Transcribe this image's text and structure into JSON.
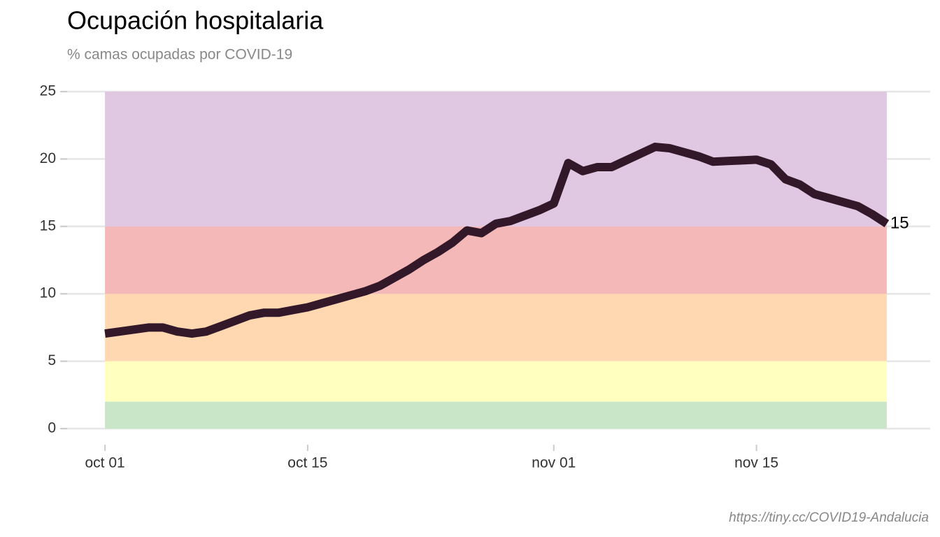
{
  "chart_data": {
    "type": "line",
    "title": "Ocupación hospitalaria",
    "subtitle": "% camas ocupadas por COVID-19",
    "caption": "https://tiny.cc/COVID19-Andalucia",
    "x": [
      "10-01",
      "10-02",
      "10-03",
      "10-04",
      "10-05",
      "10-06",
      "10-07",
      "10-08",
      "10-09",
      "10-10",
      "10-11",
      "10-12",
      "10-13",
      "10-14",
      "10-15",
      "10-16",
      "10-17",
      "10-18",
      "10-19",
      "10-20",
      "10-21",
      "10-22",
      "10-23",
      "10-24",
      "10-25",
      "10-26",
      "10-27",
      "10-28",
      "10-29",
      "10-30",
      "10-31",
      "11-01",
      "11-02",
      "11-03",
      "11-04",
      "11-05",
      "11-06",
      "11-07",
      "11-08",
      "11-09",
      "11-10",
      "11-11",
      "11-12",
      "11-13",
      "11-14",
      "11-15",
      "11-16",
      "11-17",
      "11-18",
      "11-19",
      "11-20",
      "11-21",
      "11-22",
      "11-23",
      "11-24"
    ],
    "series": [
      {
        "color": "#33182a",
        "values": [
          7.05,
          7.2,
          7.35,
          7.5,
          7.5,
          7.2,
          7.05,
          7.2,
          7.6,
          8.0,
          8.4,
          8.6,
          8.6,
          8.8,
          9.0,
          9.3,
          9.6,
          9.9,
          10.2,
          10.6,
          11.2,
          11.8,
          12.5,
          13.1,
          13.8,
          14.7,
          14.5,
          15.2,
          15.4,
          15.8,
          16.2,
          16.7,
          19.7,
          19.1,
          19.4,
          19.4,
          19.9,
          20.4,
          20.9,
          20.8,
          20.5,
          20.2,
          19.8,
          19.85,
          19.9,
          19.95,
          19.6,
          18.5,
          18.1,
          17.4,
          17.1,
          16.8,
          16.5,
          15.9,
          15.2
        ]
      }
    ],
    "end_label": "15",
    "bands": [
      {
        "from": 0,
        "to": 2,
        "color": "#c9e6c9"
      },
      {
        "from": 2,
        "to": 5,
        "color": "#ffffc0"
      },
      {
        "from": 5,
        "to": 10,
        "color": "#ffd8b2"
      },
      {
        "from": 10,
        "to": 15,
        "color": "#f5b8b8"
      },
      {
        "from": 15,
        "to": 25,
        "color": "#e0c8e2"
      }
    ],
    "xlim": [
      "09-28",
      "11-27"
    ],
    "xticks": [
      {
        "value": "10-01",
        "label": "oct 01"
      },
      {
        "value": "10-15",
        "label": "oct 15"
      },
      {
        "value": "11-01",
        "label": "nov 01"
      },
      {
        "value": "11-15",
        "label": "nov 15"
      }
    ],
    "ylim": [
      0,
      25
    ],
    "yticks": [
      0,
      5,
      10,
      15,
      20,
      25
    ],
    "grid": true
  }
}
